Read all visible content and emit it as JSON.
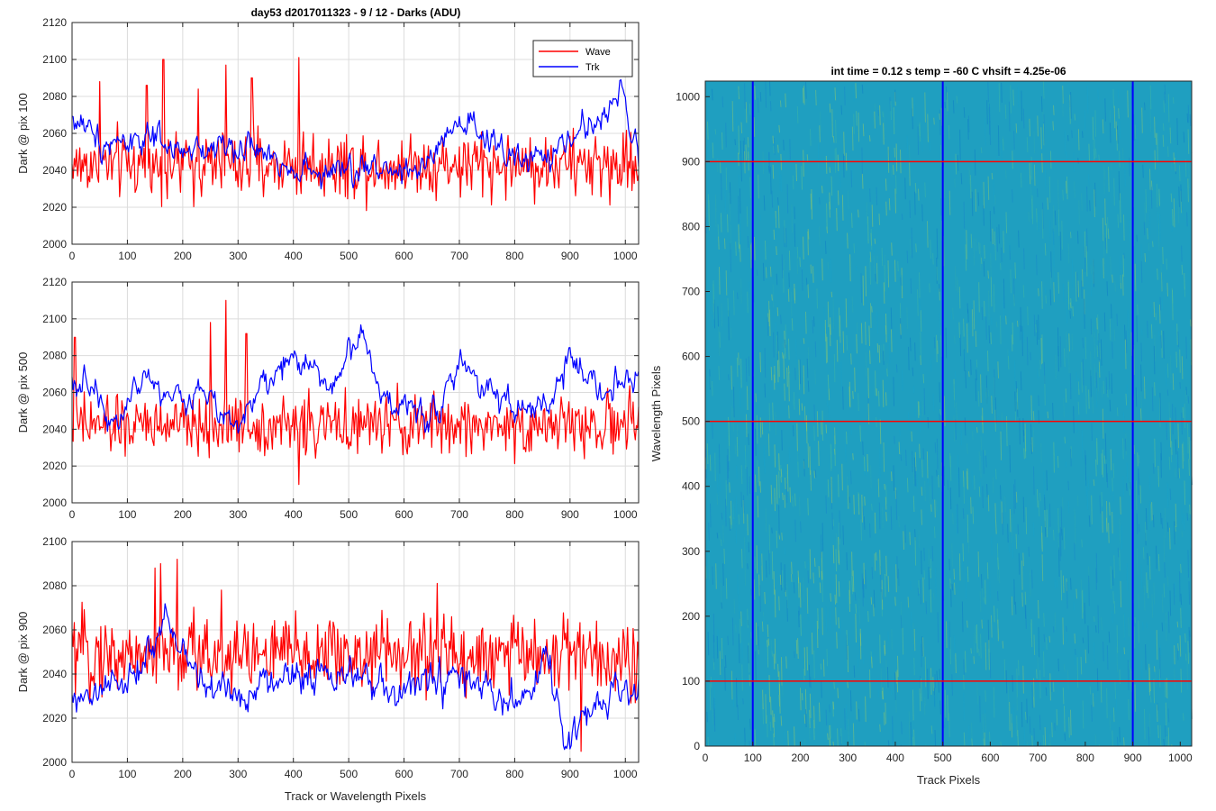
{
  "figure": {
    "title": "day53 d2017011323 - 9 / 12 - Darks (ADU)"
  },
  "chart_data": [
    {
      "type": "line",
      "ylabel": "Dark @ pix 100",
      "xlabel": "",
      "xlim": [
        0,
        1024
      ],
      "ylim": [
        2000,
        2120
      ],
      "xticks": [
        0,
        100,
        200,
        300,
        400,
        500,
        600,
        700,
        800,
        900,
        1000
      ],
      "yticks": [
        2000,
        2020,
        2040,
        2060,
        2080,
        2100,
        2120
      ],
      "grid": true,
      "legend": {
        "placement": "top-right",
        "entries": [
          "Wave",
          "Trk"
        ]
      },
      "series": [
        {
          "name": "Wave",
          "color": "#ff0000",
          "mean": 2043,
          "noise": 9,
          "spikes": [
            [
              165,
              2100
            ],
            [
              278,
              2097
            ],
            [
              410,
              2101
            ],
            [
              50,
              2088
            ],
            [
              135,
              2086
            ],
            [
              228,
              2084
            ],
            [
              325,
              2090
            ]
          ],
          "features": []
        },
        {
          "name": "Trk",
          "color": "#0000ff",
          "mean": 2047,
          "noise": 6,
          "spikes": [],
          "features": [
            [
              0,
              2068
            ],
            [
              60,
              2055
            ],
            [
              120,
              2058
            ],
            [
              200,
              2048
            ],
            [
              280,
              2055
            ],
            [
              330,
              2050
            ],
            [
              380,
              2045
            ],
            [
              450,
              2038
            ],
            [
              520,
              2040
            ],
            [
              580,
              2042
            ],
            [
              640,
              2040
            ],
            [
              680,
              2060
            ],
            [
              720,
              2062
            ],
            [
              780,
              2050
            ],
            [
              830,
              2045
            ],
            [
              880,
              2050
            ],
            [
              920,
              2062
            ],
            [
              960,
              2068
            ],
            [
              990,
              2088
            ],
            [
              1010,
              2060
            ],
            [
              1024,
              2045
            ]
          ]
        }
      ]
    },
    {
      "type": "line",
      "ylabel": "Dark @ pix 500",
      "xlabel": "",
      "xlim": [
        0,
        1024
      ],
      "ylim": [
        2000,
        2120
      ],
      "xticks": [
        0,
        100,
        200,
        300,
        400,
        500,
        600,
        700,
        800,
        900,
        1000
      ],
      "yticks": [
        2000,
        2020,
        2040,
        2060,
        2080,
        2100,
        2120
      ],
      "grid": true,
      "series": [
        {
          "name": "Wave",
          "color": "#ff0000",
          "mean": 2042,
          "noise": 8,
          "spikes": [
            [
              278,
              2110
            ],
            [
              250,
              2098
            ],
            [
              5,
              2090
            ],
            [
              315,
              2092
            ],
            [
              410,
              2010
            ],
            [
              860,
              2045
            ]
          ],
          "features": []
        },
        {
          "name": "Trk",
          "color": "#0000ff",
          "mean": 2048,
          "noise": 6,
          "spikes": [],
          "features": [
            [
              0,
              2068
            ],
            [
              40,
              2060
            ],
            [
              80,
              2045
            ],
            [
              130,
              2070
            ],
            [
              180,
              2055
            ],
            [
              230,
              2060
            ],
            [
              300,
              2045
            ],
            [
              340,
              2060
            ],
            [
              380,
              2075
            ],
            [
              420,
              2078
            ],
            [
              470,
              2062
            ],
            [
              520,
              2095
            ],
            [
              540,
              2075
            ],
            [
              580,
              2050
            ],
            [
              620,
              2052
            ],
            [
              660,
              2050
            ],
            [
              700,
              2075
            ],
            [
              760,
              2062
            ],
            [
              800,
              2052
            ],
            [
              860,
              2050
            ],
            [
              900,
              2078
            ],
            [
              940,
              2068
            ],
            [
              970,
              2062
            ],
            [
              1000,
              2072
            ],
            [
              1024,
              2060
            ]
          ]
        }
      ]
    },
    {
      "type": "line",
      "ylabel": "Dark @ pix 900",
      "xlabel": "Track or Wavelength Pixels",
      "xlim": [
        0,
        1024
      ],
      "ylim": [
        2000,
        2100
      ],
      "xticks": [
        0,
        100,
        200,
        300,
        400,
        500,
        600,
        700,
        800,
        900,
        1000
      ],
      "yticks": [
        2000,
        2020,
        2040,
        2060,
        2080,
        2100
      ],
      "grid": true,
      "series": [
        {
          "name": "Wave",
          "color": "#ff0000",
          "mean": 2049,
          "noise": 9,
          "spikes": [
            [
              160,
              2090
            ],
            [
              190,
              2092
            ],
            [
              150,
              2088
            ],
            [
              660,
              2081
            ],
            [
              270,
              2078
            ],
            [
              920,
              2005
            ]
          ],
          "features": []
        },
        {
          "name": "Trk",
          "color": "#0000ff",
          "mean": 2035,
          "noise": 6,
          "spikes": [],
          "features": [
            [
              0,
              2025
            ],
            [
              60,
              2032
            ],
            [
              120,
              2040
            ],
            [
              170,
              2065
            ],
            [
              220,
              2040
            ],
            [
              300,
              2030
            ],
            [
              360,
              2038
            ],
            [
              420,
              2040
            ],
            [
              480,
              2042
            ],
            [
              540,
              2035
            ],
            [
              580,
              2030
            ],
            [
              620,
              2035
            ],
            [
              700,
              2038
            ],
            [
              760,
              2030
            ],
            [
              820,
              2025
            ],
            [
              860,
              2050
            ],
            [
              890,
              2005
            ],
            [
              940,
              2025
            ],
            [
              980,
              2035
            ],
            [
              1024,
              2030
            ]
          ]
        }
      ]
    },
    {
      "type": "heatmap",
      "title": "int time = 0.12 s   temp = -60 C   vhsift = 4.25e-06",
      "xlabel": "Track Pixels",
      "ylabel": "Wavelength Pixels",
      "xlim": [
        0,
        1024
      ],
      "ylim": [
        0,
        1024
      ],
      "xticks": [
        0,
        100,
        200,
        300,
        400,
        500,
        600,
        700,
        800,
        900,
        1000
      ],
      "yticks": [
        0,
        100,
        200,
        300,
        400,
        500,
        600,
        700,
        800,
        900,
        1000
      ],
      "base_color": "#1f9fc0",
      "vertical_lines": {
        "color": "#0000ff",
        "positions": [
          100,
          500,
          900
        ]
      },
      "horizontal_lines": {
        "color": "#ff0000",
        "positions": [
          100,
          500,
          900
        ]
      }
    }
  ]
}
